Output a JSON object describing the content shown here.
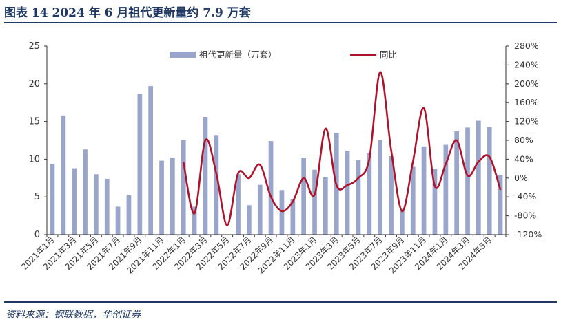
{
  "figure": {
    "title": "图表 14   2024 年 6 月祖代更新量约 7.9 万套",
    "source": "资料来源：钢联数据，华创证券"
  },
  "colors": {
    "bar": "#9aa5cc",
    "line": "#b0112b",
    "axis": "#333333",
    "rule": "#1f3864"
  },
  "chart_data": {
    "type": "bar",
    "title": "",
    "xlabel": "",
    "ylabel": "",
    "ylim": [
      0,
      25
    ],
    "y2lim": [
      -120,
      280
    ],
    "yticks": [
      "0",
      "5",
      "10",
      "15",
      "20",
      "25"
    ],
    "y2ticks": [
      "-120%",
      "-80%",
      "-40%",
      "0%",
      "40%",
      "80%",
      "120%",
      "160%",
      "200%",
      "240%",
      "280%"
    ],
    "legend_position": "top",
    "grid": false,
    "categories": [
      "2021年1月",
      "2021年2月",
      "2021年3月",
      "2021年4月",
      "2021年5月",
      "2021年6月",
      "2021年7月",
      "2021年8月",
      "2021年9月",
      "2021年10月",
      "2021年11月",
      "2021年12月",
      "2022年1月",
      "2022年2月",
      "2022年3月",
      "2022年4月",
      "2022年5月",
      "2022年6月",
      "2022年7月",
      "2022年8月",
      "2022年9月",
      "2022年10月",
      "2022年11月",
      "2022年12月",
      "2023年1月",
      "2023年2月",
      "2023年3月",
      "2023年4月",
      "2023年5月",
      "2023年6月",
      "2023年7月",
      "2023年8月",
      "2023年9月",
      "2023年10月",
      "2023年11月",
      "2023年12月",
      "2024年1月",
      "2024年2月",
      "2024年3月",
      "2024年4月",
      "2024年5月",
      "2024年6月"
    ],
    "xtick_labels": [
      "2021年1月",
      "2021年3月",
      "2021年5月",
      "2021年7月",
      "2021年9月",
      "2021年11月",
      "2022年1月",
      "2022年3月",
      "2022年5月",
      "2022年7月",
      "2022年9月",
      "2022年11月",
      "2023年1月",
      "2023年3月",
      "2023年5月",
      "2023年7月",
      "2023年9月",
      "2023年11月",
      "2024年1月",
      "2024年3月",
      "2024年5月"
    ],
    "series": [
      {
        "name": "祖代更新量（万套）",
        "type": "bar",
        "axis": "left",
        "values": [
          9.4,
          15.8,
          8.8,
          11.3,
          8.0,
          7.4,
          3.7,
          5.2,
          18.7,
          19.7,
          9.8,
          10.2,
          12.5,
          3.7,
          15.6,
          13.2,
          null,
          8.0,
          3.9,
          6.6,
          12.4,
          5.9,
          4.7,
          10.2,
          8.6,
          7.6,
          13.5,
          11.1,
          9.9,
          10.8,
          12.5,
          10.4,
          3.3,
          9.0,
          11.7,
          8.7,
          11.9,
          13.7,
          14.2,
          15.1,
          14.3,
          7.9
        ]
      },
      {
        "name": "同比",
        "type": "line",
        "axis": "right",
        "values": [
          null,
          null,
          null,
          null,
          null,
          null,
          null,
          null,
          null,
          null,
          null,
          null,
          34,
          -75,
          80,
          10,
          -100,
          10,
          0,
          28,
          -40,
          -70,
          -50,
          0,
          -35,
          105,
          -15,
          -15,
          0,
          40,
          225,
          60,
          -70,
          35,
          148,
          -17,
          30,
          80,
          5,
          35,
          45,
          -25
        ]
      }
    ]
  }
}
